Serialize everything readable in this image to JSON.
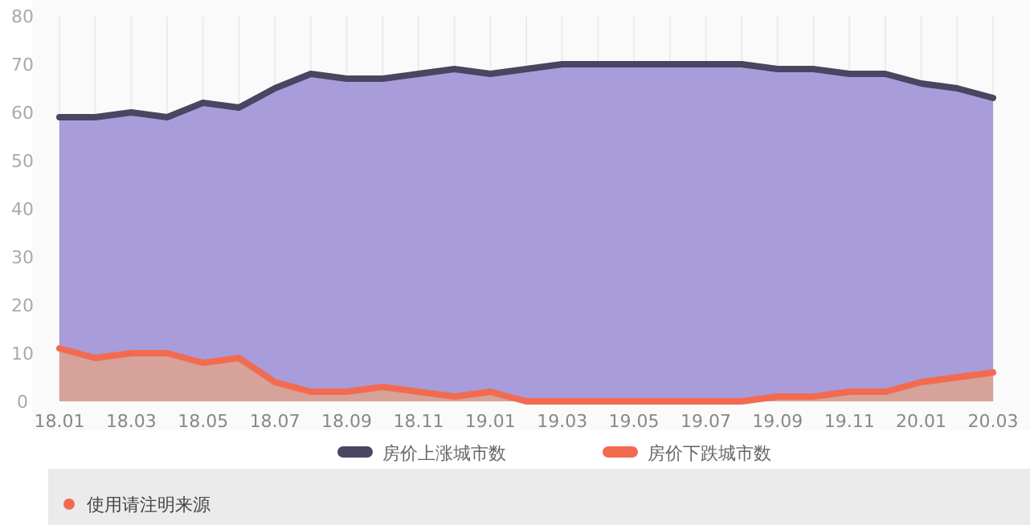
{
  "chart_data": {
    "type": "area",
    "categories": [
      "18.01",
      null,
      "18.03",
      null,
      "18.05",
      null,
      "18.07",
      null,
      "18.09",
      null,
      "18.11",
      null,
      "19.01",
      null,
      "19.03",
      null,
      "19.05",
      null,
      "19.07",
      null,
      "19.09",
      null,
      "19.11",
      null,
      "20.01",
      null,
      "20.03"
    ],
    "series": [
      {
        "name": "房价上涨城市数",
        "color": "#4a4560",
        "values": [
          59,
          59,
          60,
          59,
          62,
          61,
          65,
          68,
          67,
          67,
          68,
          69,
          68,
          69,
          70,
          70,
          70,
          70,
          70,
          70,
          69,
          69,
          68,
          68,
          66,
          65,
          63
        ]
      },
      {
        "name": "房价下跌城市数",
        "color": "#f26b50",
        "values": [
          11,
          9,
          10,
          10,
          8,
          9,
          4,
          2,
          2,
          3,
          2,
          1,
          2,
          0,
          0,
          0,
          0,
          0,
          0,
          0,
          1,
          1,
          2,
          2,
          4,
          5,
          6
        ]
      }
    ],
    "ylim": [
      0,
      80
    ],
    "yticks": [
      0,
      10,
      20,
      30,
      40,
      50,
      60,
      70,
      80
    ],
    "grid": "x",
    "legend": "bottom",
    "annotations": [
      "使用请注明来源"
    ]
  }
}
